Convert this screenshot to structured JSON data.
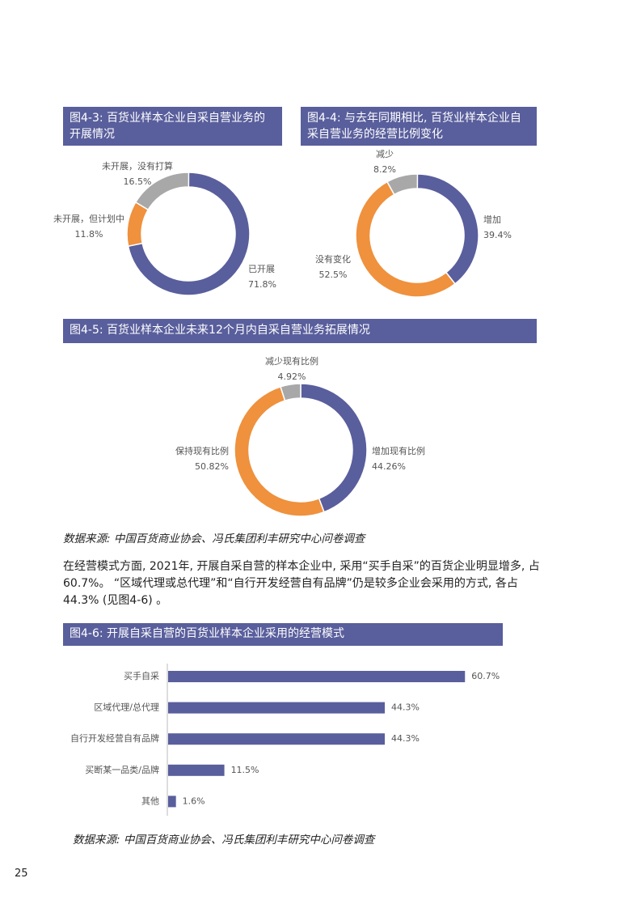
{
  "chart_data": [
    {
      "type": "donut",
      "title": "图4-3: 百货业样本企业自采自营业务的开展情况",
      "categories": [
        "已开展",
        "未开展，但计划中",
        "未开展，没有打算"
      ],
      "values": [
        71.8,
        11.8,
        16.5
      ],
      "value_labels": [
        "71.8%",
        "11.8%",
        "16.5%"
      ],
      "colors": [
        "#595e9c",
        "#ef913d",
        "#a8a8a8"
      ]
    },
    {
      "type": "donut",
      "title": "图4-4: 与去年同期相比, 百货业样本企业自采自营业务的经营比例变化",
      "categories": [
        "增加",
        "没有变化",
        "减少"
      ],
      "values": [
        39.4,
        52.5,
        8.2
      ],
      "value_labels": [
        "39.4%",
        "52.5%",
        "8.2%"
      ],
      "colors": [
        "#595e9c",
        "#ef913d",
        "#a8a8a8"
      ]
    },
    {
      "type": "donut",
      "title": "图4-5: 百货业样本企业未来12个月内自采自营业务拓展情况",
      "categories": [
        "增加现有比例",
        "保持现有比例",
        "减少现有比例"
      ],
      "values": [
        44.26,
        50.82,
        4.92
      ],
      "value_labels": [
        "44.26%",
        "50.82%",
        "4.92%"
      ],
      "colors": [
        "#595e9c",
        "#ef913d",
        "#a8a8a8"
      ]
    },
    {
      "type": "bar",
      "orientation": "horizontal",
      "title": "图4-6: 开展自采自营的百货业样本企业采用的经营模式",
      "categories": [
        "买手自采",
        "区域代理/总代理",
        "自行开发经营自有品牌",
        "买断某一品类/品牌",
        "其他"
      ],
      "values": [
        60.7,
        44.3,
        44.3,
        11.5,
        1.6
      ],
      "value_labels": [
        "60.7%",
        "44.3%",
        "44.3%",
        "11.5%",
        "1.6%"
      ],
      "color": "#595e9c"
    }
  ],
  "source_notes": [
    "数据来源: 中国百货商业协会、冯氏集团利丰研究中心问卷调查",
    "数据来源: 中国百货商业协会、冯氏集团利丰研究中心问卷调查"
  ],
  "paragraph": "在经营模式方面, 2021年, 开展自采自营的样本企业中, 采用“买手自采”的百货企业明显增多, 占60.7%。 “区域代理或总代理”和“自行开发经营自有品牌”仍是较多企业会采用的方式, 各占44.3% (见图4-6) 。",
  "page_number": "25"
}
